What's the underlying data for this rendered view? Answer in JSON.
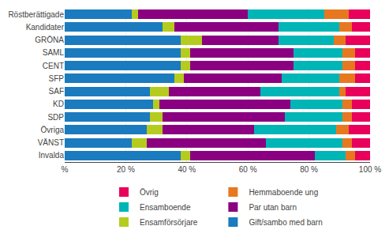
{
  "chart_data": {
    "type": "bar",
    "orientation": "horizontal",
    "stacked": true,
    "categories": [
      "Röstberättigade",
      "Kandidater",
      "GRÖNA",
      "SAML",
      "CENT",
      "SFP",
      "SAF",
      "KD",
      "SDP",
      "Övriga",
      "VÄNST",
      "Invalda"
    ],
    "series": [
      {
        "name": "Gift/sambo med barn",
        "color": "#1b7bbf",
        "values": [
          22,
          32,
          38,
          38,
          38,
          36,
          28,
          29,
          28,
          27,
          22,
          38
        ]
      },
      {
        "name": "Ensamförsörjare",
        "color": "#b5cc1e",
        "values": [
          2,
          4,
          7,
          3,
          3,
          3,
          6,
          2,
          4,
          5,
          5,
          3
        ]
      },
      {
        "name": "Par utan barn",
        "color": "#8b0080",
        "values": [
          36,
          34,
          25,
          34,
          34,
          32,
          30,
          43,
          40,
          30,
          39,
          41
        ]
      },
      {
        "name": "Ensamboende",
        "color": "#00b5b5",
        "values": [
          25,
          20,
          18,
          16,
          16,
          19,
          26,
          17,
          19,
          27,
          25,
          10
        ]
      },
      {
        "name": "Hemmaboende ung",
        "color": "#e87820",
        "values": [
          8,
          4,
          4,
          4,
          4,
          5,
          2,
          3,
          3,
          4,
          3,
          3
        ]
      },
      {
        "name": "Övrig",
        "color": "#e8005a",
        "values": [
          7,
          6,
          8,
          5,
          5,
          5,
          8,
          6,
          6,
          7,
          6,
          5
        ]
      }
    ],
    "xlim": [
      0,
      100
    ],
    "xticks": [
      {
        "value": 0,
        "label": "%"
      },
      {
        "value": 20,
        "label": "20 %"
      },
      {
        "value": 40,
        "label": "40 %"
      },
      {
        "value": 60,
        "label": "60 %"
      },
      {
        "value": 80,
        "label": "80 %"
      },
      {
        "value": 100,
        "label": "100 %"
      }
    ],
    "grid": true,
    "legend": "bottom"
  }
}
